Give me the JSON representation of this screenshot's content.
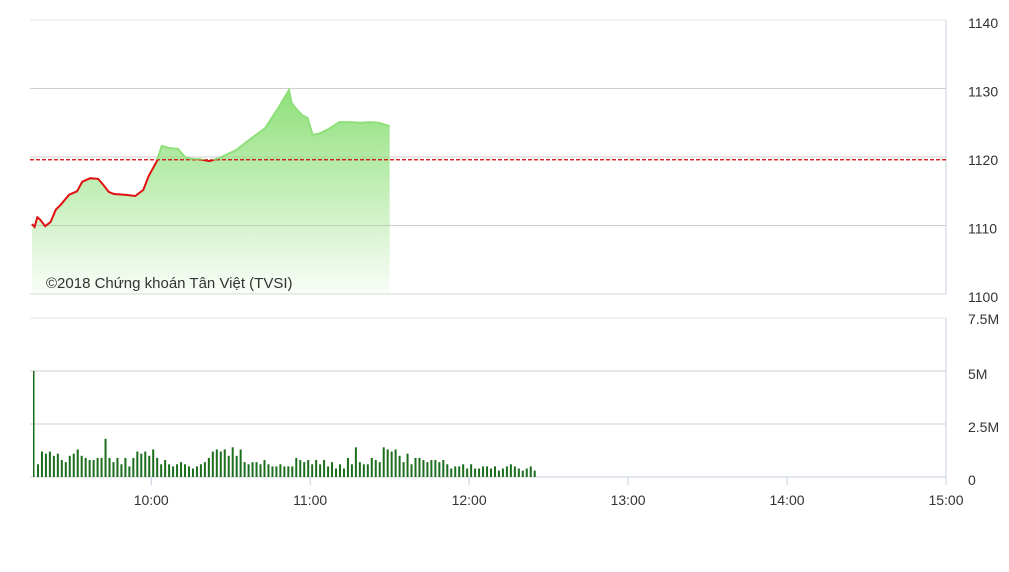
{
  "chart_data": [
    {
      "type": "area",
      "panel": "price",
      "watermark": "©2018 Chứng khoán Tân Việt (TVSI)",
      "reference_price": 1119.6,
      "ylim": [
        1100,
        1140
      ],
      "yticks": [
        "1140",
        "1130",
        "1120",
        "1110",
        "1100"
      ],
      "ytick_values": [
        1140,
        1130,
        1120,
        1110,
        1100
      ],
      "xlim": [
        "09:15",
        "15:00"
      ],
      "grid": true,
      "colors": {
        "above": "#8fe07a",
        "below": "#e01010",
        "reference": "#d40000",
        "fill": "#9be68a"
      },
      "x": [
        "09:15",
        "09:16",
        "09:17",
        "09:18",
        "09:20",
        "09:22",
        "09:24",
        "09:26",
        "09:29",
        "09:32",
        "09:34",
        "09:37",
        "09:40",
        "09:42",
        "09:44",
        "09:46",
        "09:50",
        "09:54",
        "09:57",
        "09:59",
        "10:02",
        "10:04",
        "10:07",
        "10:10",
        "10:13",
        "10:16",
        "10:18",
        "10:22",
        "10:26",
        "10:32",
        "10:37",
        "10:43",
        "10:48",
        "10:52",
        "10:53",
        "10:55",
        "10:57",
        "10:59",
        "11:01",
        "11:04",
        "11:07",
        "11:11",
        "11:15",
        "11:19",
        "11:23",
        "11:26",
        "11:30"
      ],
      "values": [
        1110.2,
        1109.8,
        1111.2,
        1110.9,
        1109.9,
        1110.5,
        1112.3,
        1113.1,
        1114.5,
        1115.0,
        1116.4,
        1116.9,
        1116.8,
        1115.9,
        1114.9,
        1114.6,
        1114.5,
        1114.3,
        1115.2,
        1117.2,
        1119.3,
        1121.6,
        1121.3,
        1121.2,
        1119.9,
        1119.7,
        1119.7,
        1119.4,
        1119.9,
        1121.0,
        1122.5,
        1124.2,
        1127.2,
        1129.8,
        1127.9,
        1126.9,
        1126.1,
        1125.7,
        1123.2,
        1123.5,
        1124.1,
        1125.1,
        1125.1,
        1125.0,
        1125.1,
        1125.0,
        1124.5
      ]
    },
    {
      "type": "bar",
      "panel": "volume",
      "ylim": [
        0,
        7.5
      ],
      "yunit": "M",
      "yticks": [
        "7.5M",
        "5M",
        "2.5M",
        "0"
      ],
      "ytick_values": [
        7.5,
        5,
        2.5,
        0
      ],
      "xticks": [
        "10:00",
        "11:00",
        "12:00",
        "13:00",
        "14:00",
        "15:00"
      ],
      "xlim": [
        "09:15",
        "15:00"
      ],
      "grid": true,
      "color": "#1b6e1b",
      "start_time": "09:15",
      "interval_minutes": 1.5,
      "values": [
        5.0,
        0.6,
        1.2,
        1.1,
        1.2,
        1.0,
        1.1,
        0.8,
        0.7,
        1.0,
        1.1,
        1.3,
        1.0,
        0.9,
        0.8,
        0.8,
        0.9,
        0.9,
        1.8,
        0.9,
        0.7,
        0.9,
        0.6,
        0.9,
        0.5,
        0.9,
        1.2,
        1.1,
        1.2,
        1.0,
        1.3,
        0.9,
        0.6,
        0.8,
        0.6,
        0.5,
        0.6,
        0.7,
        0.6,
        0.5,
        0.4,
        0.5,
        0.6,
        0.7,
        0.9,
        1.2,
        1.3,
        1.2,
        1.3,
        1.0,
        1.4,
        1.0,
        1.3,
        0.7,
        0.6,
        0.7,
        0.7,
        0.6,
        0.8,
        0.6,
        0.5,
        0.5,
        0.6,
        0.5,
        0.5,
        0.5,
        0.9,
        0.8,
        0.7,
        0.8,
        0.6,
        0.8,
        0.6,
        0.8,
        0.5,
        0.7,
        0.4,
        0.6,
        0.4,
        0.9,
        0.6,
        1.4,
        0.7,
        0.6,
        0.6,
        0.9,
        0.8,
        0.7,
        1.4,
        1.3,
        1.2,
        1.3,
        1.0,
        0.7,
        1.1,
        0.6,
        0.9,
        0.9,
        0.8,
        0.7,
        0.8,
        0.8,
        0.7,
        0.8,
        0.6,
        0.4,
        0.5,
        0.5,
        0.6,
        0.4,
        0.6,
        0.4,
        0.4,
        0.5,
        0.5,
        0.4,
        0.5,
        0.3,
        0.4,
        0.5,
        0.6,
        0.5,
        0.4,
        0.3,
        0.4,
        0.5,
        0.3
      ]
    }
  ]
}
